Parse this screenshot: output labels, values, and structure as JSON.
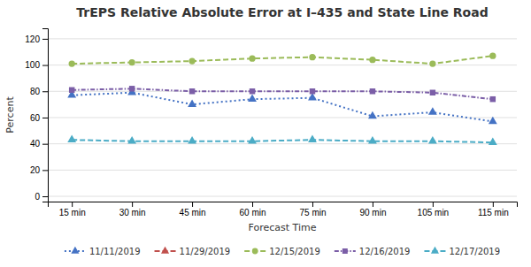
{
  "chart_data": {
    "type": "line",
    "title": "TrEPS Relative Absolute Error at I–435 and State Line Road",
    "xlabel": "Forecast Time",
    "ylabel": "Percent",
    "categories": [
      "15 min",
      "30 min",
      "45 min",
      "60 min",
      "75 min",
      "90 min",
      "105 min",
      "115 min"
    ],
    "series": [
      {
        "name": "11/11/2019",
        "color": "#4472C4",
        "marker": "triangle",
        "line_style": "dotted",
        "values": [
          77,
          79,
          70,
          74,
          75,
          61,
          64,
          57
        ]
      },
      {
        "name": "11/29/2019",
        "color": "#C0504D",
        "marker": "triangle",
        "line_style": "dashed",
        "values": [
          null,
          null,
          null,
          null,
          null,
          null,
          null,
          null
        ]
      },
      {
        "name": "12/15/2019",
        "color": "#9BBB59",
        "marker": "circle",
        "line_style": "dashed",
        "values": [
          101,
          102,
          103,
          105,
          106,
          104,
          101,
          107
        ]
      },
      {
        "name": "12/16/2019",
        "color": "#7B5EA7",
        "marker": "square",
        "line_style": "dash-dot",
        "values": [
          81,
          82,
          80,
          80,
          80,
          80,
          79,
          74
        ]
      },
      {
        "name": "12/17/2019",
        "color": "#4BACC6",
        "marker": "triangle",
        "line_style": "dashed",
        "values": [
          43,
          42,
          42,
          42,
          43,
          42,
          42,
          41
        ]
      }
    ],
    "ylim": [
      -4,
      128
    ],
    "yticks": [
      0,
      20,
      40,
      60,
      80,
      100,
      120
    ],
    "grid": true,
    "legend": "bottom"
  }
}
